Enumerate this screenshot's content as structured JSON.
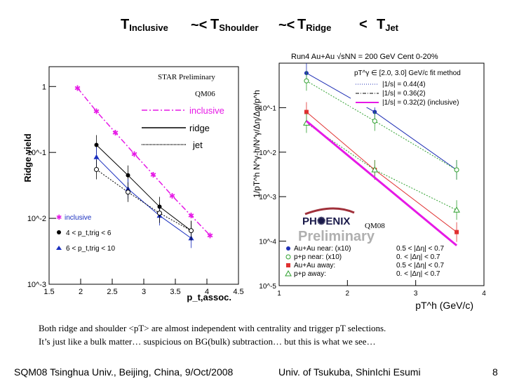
{
  "title": {
    "base": "T",
    "subs": [
      "Inclusive",
      "Shoulder",
      "Ridge",
      "Jet"
    ],
    "relations": [
      "~<",
      "~<",
      "<"
    ]
  },
  "chart_data": [
    {
      "type": "scatter",
      "title": "",
      "ylabel": "Ridge yield",
      "xlabel": "p_t,assoc.",
      "xlim": [
        1.5,
        4.5
      ],
      "ylim": [
        0.001,
        2
      ],
      "yscale": "log",
      "x_ticks": [
        "1.5",
        "2",
        "2.5",
        "3",
        "3.5",
        "4",
        "4.5"
      ],
      "y_ticks": [
        "1",
        "10^-1",
        "10^-2",
        "10^-3"
      ],
      "annotations": [
        "STAR Preliminary",
        "QM06"
      ],
      "legend": [
        "inclusive",
        "ridge",
        "jet"
      ],
      "legend_lower": {
        "inclusive": "inclusive",
        "range1": "4 < p_t,trig < 6",
        "range2": "6 < p_t,trig < 10"
      },
      "series": [
        {
          "name": "inclusive",
          "style": "dash-dot",
          "color": "#e619e6",
          "x": [
            1.95,
            2.25,
            2.55,
            2.85,
            3.15,
            3.45,
            3.75,
            4.05
          ],
          "y": [
            0.95,
            0.42,
            0.2,
            0.095,
            0.046,
            0.022,
            0.011,
            0.0055
          ]
        },
        {
          "name": "4<pt,trig<6 (ridge)",
          "marker": "filled-circle",
          "color": "#000000",
          "x": [
            2.25,
            2.75,
            3.25,
            3.75
          ],
          "y": [
            0.13,
            0.045,
            0.015,
            0.0065
          ]
        },
        {
          "name": "6<pt,trig<10 (ridge)",
          "marker": "filled-triangle",
          "color": "#1a2fbf",
          "x": [
            2.25,
            2.75,
            3.25,
            3.75
          ],
          "y": [
            0.085,
            0.028,
            0.011,
            0.005
          ]
        },
        {
          "name": "jet",
          "marker": "open-circle",
          "color": "#000000",
          "x": [
            2.25,
            2.75,
            3.25,
            3.75
          ],
          "y": [
            0.055,
            0.025,
            0.012,
            0.0065
          ]
        }
      ]
    },
    {
      "type": "scatter",
      "title": "Run4 Au+Au   √sNN = 200 GeV Cent 0-20%",
      "ylabel": "1/pT^h N^γ-h/N^γ/Δη/Δφ/p^h",
      "xlabel": "pT^h (GeV/c)",
      "xlim": [
        1,
        4
      ],
      "ylim": [
        1e-05,
        1
      ],
      "yscale": "log",
      "x_ticks": [
        "1",
        "2",
        "3",
        "4"
      ],
      "y_ticks": [
        "10^-1",
        "10^-2",
        "10^-3",
        "10^-4",
        "10^-5"
      ],
      "fit_header": "pT^γ ∈ [2.0, 3.0] GeV/c   fit method",
      "fit_entries": [
        "|1/s| = 0.44(4)",
        "|1/s| = 0.36(2)",
        "|1/s| = 0.32(2) (inclusive)"
      ],
      "annotations": [
        "PHENIX Preliminary",
        "QM08"
      ],
      "legend": [
        {
          "label": "Au+Au near: (x10)",
          "range": "0.5 < |Δη| < 0.7"
        },
        {
          "label": "p+p near: (x10)",
          "range": "0. < |Δη| < 0.7"
        },
        {
          "label": "Au+Au away:",
          "range": "0.5 < |Δη| < 0.7"
        },
        {
          "label": "p+p away:",
          "range": "0. < |Δη| < 0.7"
        }
      ],
      "series": [
        {
          "name": "Au+Au near (x10)",
          "marker": "filled-circle",
          "color": "#1f2fb5",
          "x": [
            1.4,
            2.4,
            3.6
          ],
          "y": [
            0.6,
            0.08,
            0.004
          ]
        },
        {
          "name": "p+p near (x10)",
          "marker": "open-circle",
          "color": "#2fa02f",
          "x": [
            1.4,
            2.4,
            3.6
          ],
          "y": [
            0.4,
            0.05,
            0.004
          ]
        },
        {
          "name": "Au+Au away",
          "marker": "filled-square",
          "color": "#e03030",
          "x": [
            1.4,
            2.4,
            3.6
          ],
          "y": [
            0.08,
            0.004,
            0.00016
          ]
        },
        {
          "name": "p+p away",
          "marker": "open-triangle",
          "color": "#2fa02f",
          "x": [
            1.4,
            2.4,
            3.6
          ],
          "y": [
            0.045,
            0.004,
            0.0005
          ]
        },
        {
          "name": "inclusive fit",
          "style": "line",
          "color": "#e619e6",
          "x": [
            1.4,
            3.6
          ],
          "y": [
            0.05,
            8e-05
          ]
        }
      ]
    }
  ],
  "caption": {
    "line1": "Both ridge and shoulder <pT> are almost independent with centrality and trigger pT selections.",
    "line2": "It’s just like a bulk matter… suspicious on BG(bulk) subtraction… but this is what we see…"
  },
  "footer": {
    "left": "SQM08 Tsinghua Univ., Beijing, China, 9/Oct/2008",
    "center": "Univ. of Tsukuba, ShinIchi Esumi",
    "page": "8"
  }
}
